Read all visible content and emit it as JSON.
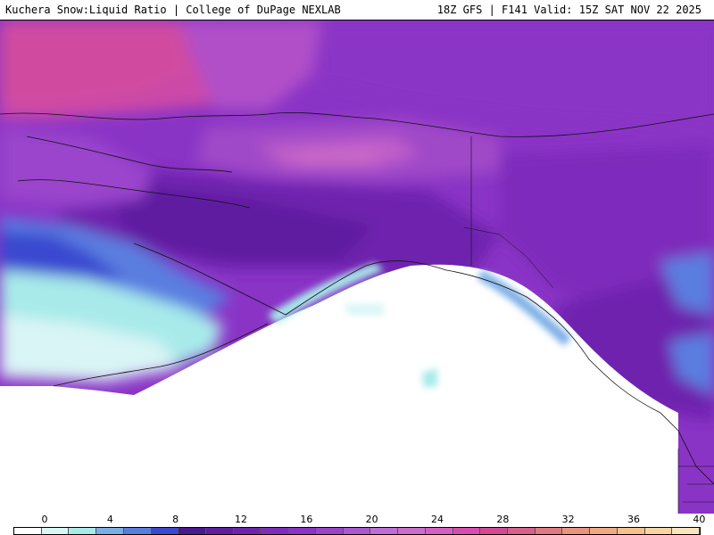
{
  "header": {
    "product": "Kuchera Snow:Liquid Ratio | College of DuPage NEXLAB",
    "run": "18Z GFS | F141 Valid: 15Z SAT NOV 22 2025"
  },
  "colorbar": {
    "ticks": [
      {
        "label": "0",
        "value": 0
      },
      {
        "label": "4",
        "value": 4
      },
      {
        "label": "8",
        "value": 8
      },
      {
        "label": "12",
        "value": 12
      },
      {
        "label": "16",
        "value": 16
      },
      {
        "label": "20",
        "value": 20
      },
      {
        "label": "24",
        "value": 24
      },
      {
        "label": "28",
        "value": 28
      },
      {
        "label": "32",
        "value": 32
      },
      {
        "label": "36",
        "value": 36
      },
      {
        "label": "40",
        "value": 40
      }
    ],
    "range": [
      0,
      42
    ],
    "colors": [
      "#ffffff",
      "#d9f5f5",
      "#a8eaea",
      "#7aaee6",
      "#5a7ee0",
      "#3a48d0",
      "#4a1890",
      "#5e1ea0",
      "#6e24ae",
      "#7e2cbc",
      "#8a34c6",
      "#9a44cc",
      "#aa58d2",
      "#be6ed8",
      "#cc6ccc",
      "#d45ec2",
      "#d84cb0",
      "#d44898",
      "#d8608a",
      "#e07a82",
      "#e8947e",
      "#efaa82",
      "#f4c08e",
      "#f8d4a4",
      "#fbe4bc"
    ]
  }
}
